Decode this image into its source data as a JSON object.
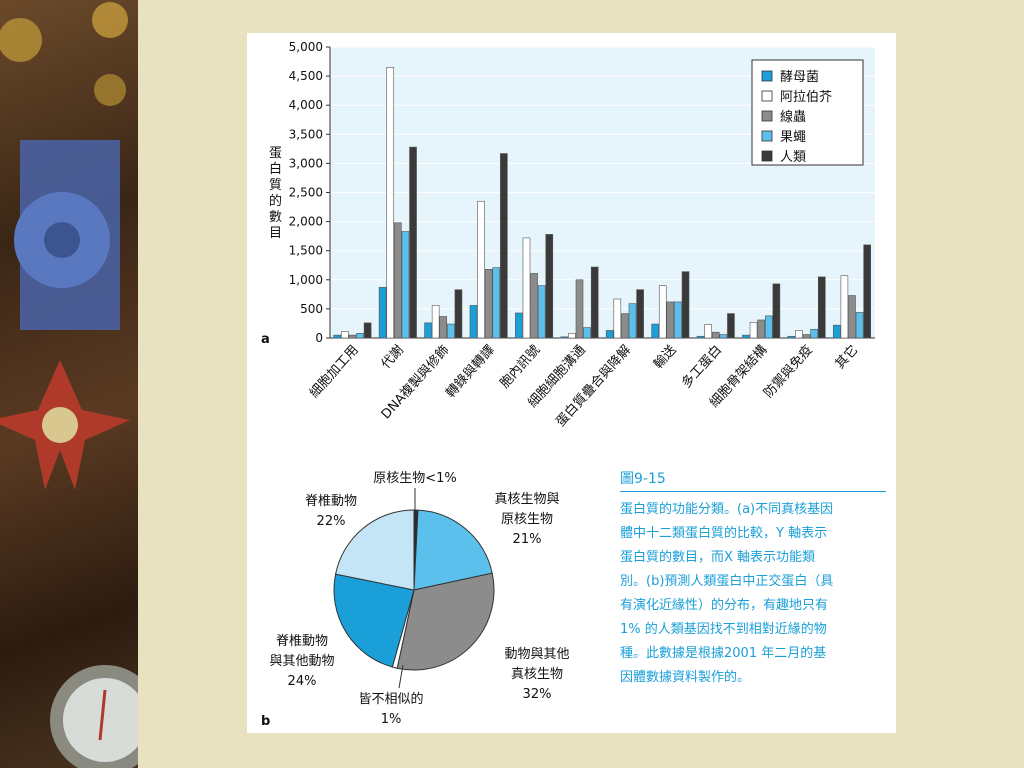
{
  "chart_data": [
    {
      "type": "bar",
      "panel_label": "a",
      "ylabel": "蛋白質的數目",
      "ylim": [
        0,
        5000
      ],
      "yticks": [
        "0",
        "500",
        "1,000",
        "1,500",
        "2,000",
        "2,500",
        "3,000",
        "3,500",
        "4,000",
        "4,500",
        "5,000"
      ],
      "categories": [
        "細胞加工用",
        "代謝",
        "DNA複製與修飾",
        "轉錄與轉譯",
        "胞內訊號",
        "細胞細胞溝通",
        "蛋白質疊合與降解",
        "輸送",
        "多工蛋白",
        "細胞骨架結構",
        "防禦與免疫",
        "其它"
      ],
      "series": [
        {
          "name": "酵母菌",
          "color": "#1a9fd8",
          "values": [
            50,
            870,
            260,
            560,
            430,
            20,
            130,
            240,
            30,
            50,
            30,
            220
          ]
        },
        {
          "name": "阿拉伯芥",
          "color": "#ffffff",
          "values": [
            110,
            4650,
            560,
            2350,
            1720,
            80,
            670,
            900,
            230,
            270,
            130,
            1070
          ]
        },
        {
          "name": "線蟲",
          "color": "#8c8c8c",
          "values": [
            50,
            1980,
            370,
            1180,
            1110,
            1000,
            420,
            620,
            100,
            310,
            60,
            730
          ]
        },
        {
          "name": "果蠅",
          "color": "#5bc0eb",
          "values": [
            80,
            1830,
            240,
            1210,
            900,
            180,
            590,
            620,
            60,
            380,
            150,
            440
          ]
        },
        {
          "name": "人類",
          "color": "#3a3a3a",
          "values": [
            260,
            3280,
            830,
            3170,
            1780,
            1220,
            830,
            1140,
            420,
            930,
            1050,
            1600
          ]
        }
      ],
      "legend_position": "top-right"
    },
    {
      "type": "pie",
      "panel_label": "b",
      "slices": [
        {
          "label": "原核生物<1%",
          "value": 0.8,
          "color": "#2a2a2a"
        },
        {
          "label": "真核生物與原核生物",
          "pct": "21%",
          "value": 21,
          "color": "#5bc0eb"
        },
        {
          "label": "動物與其他真核生物",
          "pct": "32%",
          "value": 32,
          "color": "#8c8c8c"
        },
        {
          "label": "皆不相似的",
          "pct": "1%",
          "value": 1,
          "color": "#ffffff"
        },
        {
          "label": "脊椎動物與其他動物",
          "pct": "24%",
          "value": 24,
          "color": "#1a9fd8"
        },
        {
          "label": "脊椎動物",
          "pct": "22%",
          "value": 22,
          "color": "#c4e5f5"
        }
      ]
    }
  ],
  "pie_labels": {
    "prok": "原核生物<1%",
    "euk_prok_1": "真核生物與",
    "euk_prok_2": "原核生物",
    "euk_prok_3": "21%",
    "anim_1": "動物與其他",
    "anim_2": "真核生物",
    "anim_3": "32%",
    "none_1": "皆不相似的",
    "none_2": "1%",
    "vert_anim_1": "脊椎動物",
    "vert_anim_2": "與其他動物",
    "vert_anim_3": "24%",
    "vert_1": "脊椎動物",
    "vert_2": "22%"
  },
  "caption": {
    "title": "圖9-15",
    "lines": [
      "蛋白質的功能分類。(a)不同真核基因",
      "體中十二類蛋白質的比較，Y 軸表示",
      "蛋白質的數目，而X 軸表示功能類",
      "別。(b)預測人類蛋白中正交蛋白（具",
      "有演化近緣性）的分布，有趣地只有",
      "1% 的人類基因找不到相對近緣的物",
      "種。此數據是根據2001 年二月的基",
      "因體數據資料製作的。"
    ]
  },
  "colors": {
    "background": "#e9e2c0",
    "plot_bg": "#e6f4fb",
    "accent": "#1a9fd8"
  }
}
